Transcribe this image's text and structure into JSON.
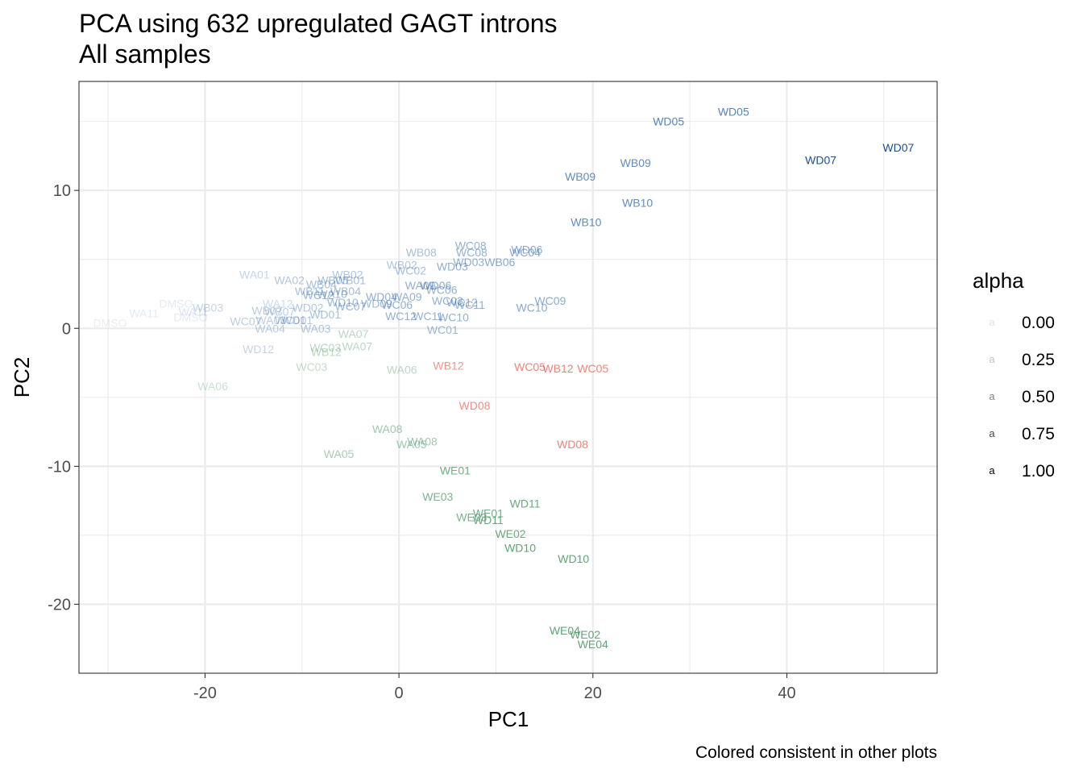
{
  "chart_data": {
    "type": "scatter",
    "title": "PCA using 632 upregulated GAGT introns",
    "subtitle": "All samples",
    "xlabel": "PC1",
    "ylabel": "PC2",
    "xlim": [
      -33,
      55.5
    ],
    "ylim": [
      -25,
      17.9
    ],
    "xticks": [
      -20,
      0,
      20,
      40
    ],
    "yticks": [
      -20,
      -10,
      0,
      10
    ],
    "x_tick_labels": [
      "-20",
      "0",
      "20",
      "40"
    ],
    "y_tick_labels": [
      "-20",
      "-10",
      "0",
      "10"
    ],
    "grid": true,
    "caption": "Colored consistent in other plots",
    "colors": {
      "blue": "#3a6fae",
      "green": "#4f9a68",
      "red": "#e25040",
      "grid": "#ebebeb",
      "border": "#333333"
    },
    "legend": {
      "title": "alpha",
      "key_glyph": "a",
      "position": "right",
      "entries": [
        {
          "label": "0.00",
          "alpha": 0.0
        },
        {
          "label": "0.25",
          "alpha": 0.25
        },
        {
          "label": "0.50",
          "alpha": 0.5
        },
        {
          "label": "0.75",
          "alpha": 0.75
        },
        {
          "label": "1.00",
          "alpha": 1.0
        }
      ]
    },
    "points": [
      {
        "label": "WD05",
        "x": 34.5,
        "y": 15.7,
        "color": "#3a6fae",
        "alpha": 0.85
      },
      {
        "label": "WD05",
        "x": 27.8,
        "y": 15.0,
        "color": "#3a6fae",
        "alpha": 0.85
      },
      {
        "label": "WD07",
        "x": 51.5,
        "y": 13.1,
        "color": "#1a4f8f",
        "alpha": 1.0
      },
      {
        "label": "WD07",
        "x": 43.5,
        "y": 12.2,
        "color": "#1a4f8f",
        "alpha": 1.0
      },
      {
        "label": "WB09",
        "x": 24.4,
        "y": 12.0,
        "color": "#3a6fae",
        "alpha": 0.8
      },
      {
        "label": "WB09",
        "x": 18.7,
        "y": 11.0,
        "color": "#3a6fae",
        "alpha": 0.8
      },
      {
        "label": "WB10",
        "x": 24.6,
        "y": 9.1,
        "color": "#3a6fae",
        "alpha": 0.8
      },
      {
        "label": "WB10",
        "x": 19.3,
        "y": 7.7,
        "color": "#3a6fae",
        "alpha": 0.8
      },
      {
        "label": "WC08",
        "x": 7.4,
        "y": 6.0,
        "color": "#3a6fae",
        "alpha": 0.55
      },
      {
        "label": "WC08",
        "x": 7.5,
        "y": 5.5,
        "color": "#3a6fae",
        "alpha": 0.55
      },
      {
        "label": "WD06",
        "x": 13.2,
        "y": 5.7,
        "color": "#3a6fae",
        "alpha": 0.6
      },
      {
        "label": "WC04",
        "x": 13.0,
        "y": 5.5,
        "color": "#3a6fae",
        "alpha": 0.6
      },
      {
        "label": "WB08",
        "x": 2.3,
        "y": 5.5,
        "color": "#3a6fae",
        "alpha": 0.45
      },
      {
        "label": "WB06",
        "x": 10.4,
        "y": 4.8,
        "color": "#3a6fae",
        "alpha": 0.6
      },
      {
        "label": "WD03",
        "x": 7.2,
        "y": 4.8,
        "color": "#3a6fae",
        "alpha": 0.55
      },
      {
        "label": "WD03",
        "x": 5.5,
        "y": 4.5,
        "color": "#3a6fae",
        "alpha": 0.55
      },
      {
        "label": "WB02",
        "x": 0.3,
        "y": 4.6,
        "color": "#3a6fae",
        "alpha": 0.4
      },
      {
        "label": "WC02",
        "x": 1.2,
        "y": 4.2,
        "color": "#3a6fae",
        "alpha": 0.45
      },
      {
        "label": "WB02",
        "x": -5.3,
        "y": 3.9,
        "color": "#3a6fae",
        "alpha": 0.4
      },
      {
        "label": "WA01",
        "x": -14.9,
        "y": 3.9,
        "color": "#3a6fae",
        "alpha": 0.3
      },
      {
        "label": "WA02",
        "x": -11.3,
        "y": 3.5,
        "color": "#3a6fae",
        "alpha": 0.4
      },
      {
        "label": "WB01",
        "x": -5.0,
        "y": 3.5,
        "color": "#3a6fae",
        "alpha": 0.45
      },
      {
        "label": "WB05",
        "x": -6.8,
        "y": 3.5,
        "color": "#3a6fae",
        "alpha": 0.45
      },
      {
        "label": "WB04",
        "x": -8.0,
        "y": 3.2,
        "color": "#3a6fae",
        "alpha": 0.45
      },
      {
        "label": "WA09",
        "x": 2.2,
        "y": 3.1,
        "color": "#3a6fae",
        "alpha": 0.55
      },
      {
        "label": "WD06",
        "x": 3.8,
        "y": 3.1,
        "color": "#3a6fae",
        "alpha": 0.6
      },
      {
        "label": "WC06",
        "x": 4.4,
        "y": 2.8,
        "color": "#3a6fae",
        "alpha": 0.55
      },
      {
        "label": "WB04",
        "x": -5.5,
        "y": 2.7,
        "color": "#3a6fae",
        "alpha": 0.45
      },
      {
        "label": "WB11",
        "x": -9.2,
        "y": 2.7,
        "color": "#3a6fae",
        "alpha": 0.45
      },
      {
        "label": "WA10",
        "x": -6.9,
        "y": 2.5,
        "color": "#3a6fae",
        "alpha": 0.5
      },
      {
        "label": "WD04",
        "x": -1.8,
        "y": 2.3,
        "color": "#3a6fae",
        "alpha": 0.55
      },
      {
        "label": "WA09",
        "x": 0.8,
        "y": 2.3,
        "color": "#3a6fae",
        "alpha": 0.55
      },
      {
        "label": "WC12",
        "x": -8.3,
        "y": 2.4,
        "color": "#3a6fae",
        "alpha": 0.5
      },
      {
        "label": "WC09",
        "x": 15.6,
        "y": 2.0,
        "color": "#3a6fae",
        "alpha": 0.6
      },
      {
        "label": "WC03",
        "x": 5.0,
        "y": 2.0,
        "color": "#3a6fae",
        "alpha": 0.55
      },
      {
        "label": "WC12",
        "x": 6.5,
        "y": 1.9,
        "color": "#3a6fae",
        "alpha": 0.55
      },
      {
        "label": "WD10",
        "x": -5.8,
        "y": 1.9,
        "color": "#3a6fae",
        "alpha": 0.5
      },
      {
        "label": "WD09",
        "x": -2.3,
        "y": 1.8,
        "color": "#3a6fae",
        "alpha": 0.5
      },
      {
        "label": "WC06",
        "x": -0.2,
        "y": 1.7,
        "color": "#3a6fae",
        "alpha": 0.55
      },
      {
        "label": "WC11",
        "x": 7.3,
        "y": 1.7,
        "color": "#3a6fae",
        "alpha": 0.55
      },
      {
        "label": "WC10",
        "x": 13.7,
        "y": 1.5,
        "color": "#3a6fae",
        "alpha": 0.6
      },
      {
        "label": "WA12",
        "x": -12.5,
        "y": 1.8,
        "color": "#3a6fae",
        "alpha": 0.25
      },
      {
        "label": "WC07",
        "x": -5.0,
        "y": 1.6,
        "color": "#3a6fae",
        "alpha": 0.5
      },
      {
        "label": "DMSO",
        "x": -23.0,
        "y": 1.8,
        "color": "#3a6fae",
        "alpha": 0.15
      },
      {
        "label": "WB03",
        "x": -19.7,
        "y": 1.5,
        "color": "#3a6fae",
        "alpha": 0.3
      },
      {
        "label": "WA11",
        "x": -21.2,
        "y": 1.2,
        "color": "#3a6fae",
        "alpha": 0.2
      },
      {
        "label": "WA11",
        "x": -26.3,
        "y": 1.1,
        "color": "#3a6fae",
        "alpha": 0.15
      },
      {
        "label": "WB07",
        "x": -13.6,
        "y": 1.3,
        "color": "#3a6fae",
        "alpha": 0.35
      },
      {
        "label": "WD02",
        "x": -9.4,
        "y": 1.5,
        "color": "#3a6fae",
        "alpha": 0.4
      },
      {
        "label": "WB07",
        "x": -12.3,
        "y": 1.2,
        "color": "#3a6fae",
        "alpha": 0.35
      },
      {
        "label": "WC11",
        "x": 3.0,
        "y": 0.9,
        "color": "#3a6fae",
        "alpha": 0.55
      },
      {
        "label": "WC12",
        "x": 0.2,
        "y": 0.9,
        "color": "#3a6fae",
        "alpha": 0.55
      },
      {
        "label": "WC10",
        "x": 5.6,
        "y": 0.8,
        "color": "#3a6fae",
        "alpha": 0.55
      },
      {
        "label": "WD01",
        "x": -7.6,
        "y": 1.0,
        "color": "#3a6fae",
        "alpha": 0.45
      },
      {
        "label": "DMSO",
        "x": -21.5,
        "y": 0.8,
        "color": "#3a6fae",
        "alpha": 0.15
      },
      {
        "label": "WD01",
        "x": -10.5,
        "y": 0.6,
        "color": "#3a6fae",
        "alpha": 0.4
      },
      {
        "label": "WC01",
        "x": -11.2,
        "y": 0.6,
        "color": "#3a6fae",
        "alpha": 0.4
      },
      {
        "label": "WA03",
        "x": -13.2,
        "y": 0.6,
        "color": "#3a6fae",
        "alpha": 0.35
      },
      {
        "label": "WC07",
        "x": -15.8,
        "y": 0.5,
        "color": "#3a6fae",
        "alpha": 0.35
      },
      {
        "label": "DMSO",
        "x": -29.8,
        "y": 0.4,
        "color": "#3a6fae",
        "alpha": 0.12
      },
      {
        "label": "WA04",
        "x": -13.3,
        "y": 0.0,
        "color": "#3a6fae",
        "alpha": 0.35
      },
      {
        "label": "WA03",
        "x": -8.6,
        "y": 0.0,
        "color": "#3a6fae",
        "alpha": 0.4
      },
      {
        "label": "WC01",
        "x": 4.5,
        "y": -0.1,
        "color": "#3a6fae",
        "alpha": 0.5
      },
      {
        "label": "WA07",
        "x": -4.7,
        "y": -0.4,
        "color": "#4f9a68",
        "alpha": 0.4
      },
      {
        "label": "WD12",
        "x": -14.5,
        "y": -1.5,
        "color": "#3a6fae",
        "alpha": 0.3
      },
      {
        "label": "WC03",
        "x": -7.6,
        "y": -1.4,
        "color": "#4f9a68",
        "alpha": 0.4
      },
      {
        "label": "WB12",
        "x": -7.5,
        "y": -1.7,
        "color": "#4f9a68",
        "alpha": 0.4
      },
      {
        "label": "WA07",
        "x": -4.3,
        "y": -1.3,
        "color": "#4f9a68",
        "alpha": 0.4
      },
      {
        "label": "WB12",
        "x": 5.1,
        "y": -2.7,
        "color": "#e25040",
        "alpha": 0.6
      },
      {
        "label": "WC05",
        "x": 13.5,
        "y": -2.8,
        "color": "#e25040",
        "alpha": 0.7
      },
      {
        "label": "WB12",
        "x": 16.4,
        "y": -2.9,
        "color": "#e25040",
        "alpha": 0.7
      },
      {
        "label": "WC05",
        "x": 20.0,
        "y": -2.9,
        "color": "#e25040",
        "alpha": 0.7
      },
      {
        "label": "WC03",
        "x": -9.0,
        "y": -2.8,
        "color": "#4f9a68",
        "alpha": 0.35
      },
      {
        "label": "WA06",
        "x": 0.3,
        "y": -3.0,
        "color": "#4f9a68",
        "alpha": 0.4
      },
      {
        "label": "WA06",
        "x": -19.2,
        "y": -4.2,
        "color": "#4f9a68",
        "alpha": 0.3
      },
      {
        "label": "WD08",
        "x": 7.8,
        "y": -5.6,
        "color": "#e25040",
        "alpha": 0.65
      },
      {
        "label": "WA08",
        "x": -1.2,
        "y": -7.3,
        "color": "#4f9a68",
        "alpha": 0.55
      },
      {
        "label": "WA08",
        "x": 2.4,
        "y": -8.2,
        "color": "#4f9a68",
        "alpha": 0.55
      },
      {
        "label": "WA05",
        "x": 1.3,
        "y": -8.4,
        "color": "#4f9a68",
        "alpha": 0.55
      },
      {
        "label": "WD08",
        "x": 17.9,
        "y": -8.4,
        "color": "#e25040",
        "alpha": 0.7
      },
      {
        "label": "WA05",
        "x": -6.2,
        "y": -9.1,
        "color": "#4f9a68",
        "alpha": 0.5
      },
      {
        "label": "WE01",
        "x": 5.8,
        "y": -10.3,
        "color": "#4f9a68",
        "alpha": 0.8
      },
      {
        "label": "WE03",
        "x": 4.0,
        "y": -12.2,
        "color": "#4f9a68",
        "alpha": 0.75
      },
      {
        "label": "WD11",
        "x": 13.0,
        "y": -12.7,
        "color": "#4f9a68",
        "alpha": 0.85
      },
      {
        "label": "WE01",
        "x": 9.2,
        "y": -13.4,
        "color": "#4f9a68",
        "alpha": 0.8
      },
      {
        "label": "WE03",
        "x": 7.5,
        "y": -13.7,
        "color": "#4f9a68",
        "alpha": 0.75
      },
      {
        "label": "WD11",
        "x": 9.2,
        "y": -13.9,
        "color": "#4f9a68",
        "alpha": 0.85
      },
      {
        "label": "WE02",
        "x": 11.5,
        "y": -14.9,
        "color": "#4f9a68",
        "alpha": 0.85
      },
      {
        "label": "WD10",
        "x": 12.5,
        "y": -15.9,
        "color": "#4f9a68",
        "alpha": 0.9
      },
      {
        "label": "WD10",
        "x": 18.0,
        "y": -16.7,
        "color": "#4f9a68",
        "alpha": 0.9
      },
      {
        "label": "WE04",
        "x": 17.1,
        "y": -21.9,
        "color": "#4f9a68",
        "alpha": 0.9
      },
      {
        "label": "WE02",
        "x": 19.2,
        "y": -22.2,
        "color": "#4f9a68",
        "alpha": 0.9
      },
      {
        "label": "WE04",
        "x": 20.0,
        "y": -22.9,
        "color": "#4f9a68",
        "alpha": 0.9
      }
    ]
  }
}
